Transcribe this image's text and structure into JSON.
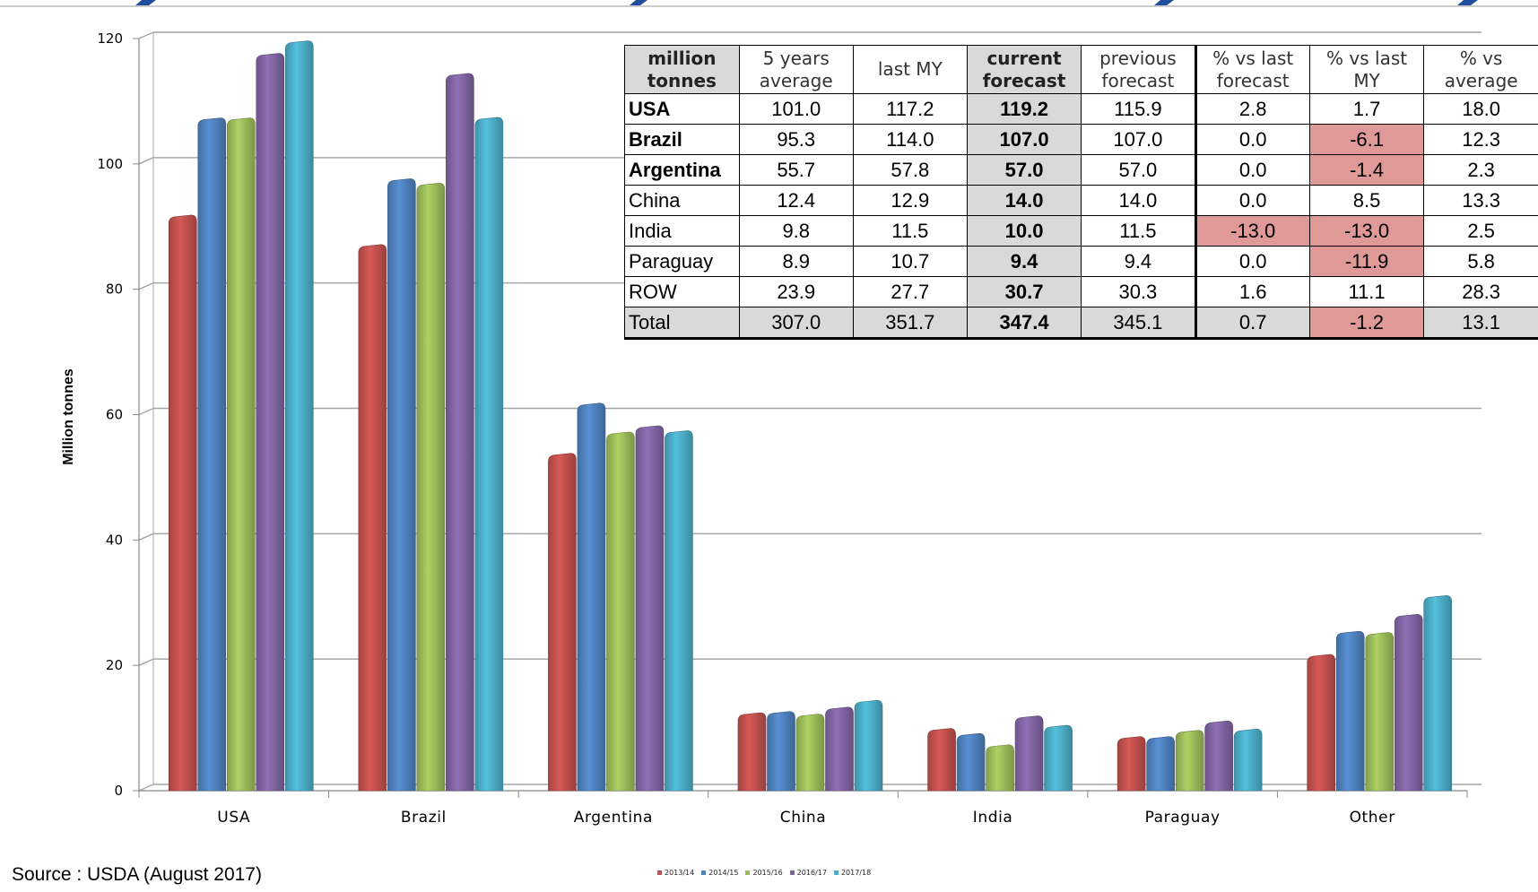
{
  "chart_data": {
    "type": "bar",
    "title": "",
    "xlabel": "",
    "ylabel": "Million tonnes",
    "ylim": [
      0,
      120
    ],
    "yticks": [
      "0",
      "20",
      "40",
      "60",
      "80",
      "100",
      "120"
    ],
    "grid": true,
    "legend_position": "bottom",
    "categories": [
      "USA",
      "Brazil",
      "Argentina",
      "China",
      "India",
      "Paraguay",
      "Other"
    ],
    "series": [
      {
        "name": "2013/14",
        "color": "#c0504d",
        "values": [
          91.4,
          86.7,
          53.4,
          12.0,
          9.5,
          8.2,
          21.3
        ]
      },
      {
        "name": "2014/15",
        "color": "#4f81bd",
        "values": [
          106.9,
          97.2,
          61.4,
          12.2,
          8.7,
          8.2,
          25.0
        ]
      },
      {
        "name": "2015/16",
        "color": "#9bbb59",
        "values": [
          106.9,
          96.5,
          56.8,
          11.8,
          6.9,
          9.2,
          24.8
        ]
      },
      {
        "name": "2016/17",
        "color": "#8064a2",
        "values": [
          117.2,
          114.0,
          57.8,
          12.9,
          11.5,
          10.7,
          27.7
        ]
      },
      {
        "name": "2017/18",
        "color": "#4bacc6",
        "values": [
          119.2,
          107.0,
          57.0,
          14.0,
          10.0,
          9.4,
          30.7
        ]
      }
    ]
  },
  "table": {
    "headers": [
      {
        "line1": "million",
        "line2": "tonnes"
      },
      {
        "line1": "5  years",
        "line2": "average"
      },
      {
        "line1": "last MY",
        "line2": ""
      },
      {
        "line1": "current",
        "line2": "forecast"
      },
      {
        "line1": "previous",
        "line2": "forecast"
      },
      {
        "line1": "% vs last",
        "line2": "forecast"
      },
      {
        "line1": "% vs last",
        "line2": "MY"
      },
      {
        "line1": "% vs",
        "line2": "average"
      }
    ],
    "rows": [
      {
        "country": "USA",
        "bold": true,
        "cells": [
          "101.0",
          "117.2",
          "119.2",
          "115.9",
          "2.8",
          "1.7",
          "18.0"
        ],
        "neg": [
          false,
          false
        ]
      },
      {
        "country": "Brazil",
        "bold": true,
        "cells": [
          "95.3",
          "114.0",
          "107.0",
          "107.0",
          "0.0",
          "-6.1",
          "12.3"
        ],
        "neg": [
          false,
          true
        ]
      },
      {
        "country": "Argentina",
        "bold": true,
        "cells": [
          "55.7",
          "57.8",
          "57.0",
          "57.0",
          "0.0",
          "-1.4",
          "2.3"
        ],
        "neg": [
          false,
          true
        ]
      },
      {
        "country": "China",
        "bold": false,
        "cells": [
          "12.4",
          "12.9",
          "14.0",
          "14.0",
          "0.0",
          "8.5",
          "13.3"
        ],
        "neg": [
          false,
          false
        ]
      },
      {
        "country": "India",
        "bold": false,
        "cells": [
          "9.8",
          "11.5",
          "10.0",
          "11.5",
          "-13.0",
          "-13.0",
          "2.5"
        ],
        "neg": [
          true,
          true
        ]
      },
      {
        "country": "Paraguay",
        "bold": false,
        "cells": [
          "8.9",
          "10.7",
          "9.4",
          "9.4",
          "0.0",
          "-11.9",
          "5.8"
        ],
        "neg": [
          false,
          true
        ]
      },
      {
        "country": "ROW",
        "bold": false,
        "cells": [
          "23.9",
          "27.7",
          "30.7",
          "30.3",
          "1.6",
          "11.1",
          "28.3"
        ],
        "neg": [
          false,
          false
        ]
      },
      {
        "country": "Total",
        "bold": false,
        "cells": [
          "307.0",
          "351.7",
          "347.4",
          "345.1",
          "0.7",
          "-1.2",
          "13.1"
        ],
        "neg": [
          false,
          true
        ]
      }
    ]
  },
  "source": "Source : USDA (August 2017)",
  "colors": {
    "accent": "#1f4e9a",
    "gridline": "#a6a6a6",
    "negative_cell": "#df9a98",
    "shaded_cell": "#d9d9d9"
  }
}
